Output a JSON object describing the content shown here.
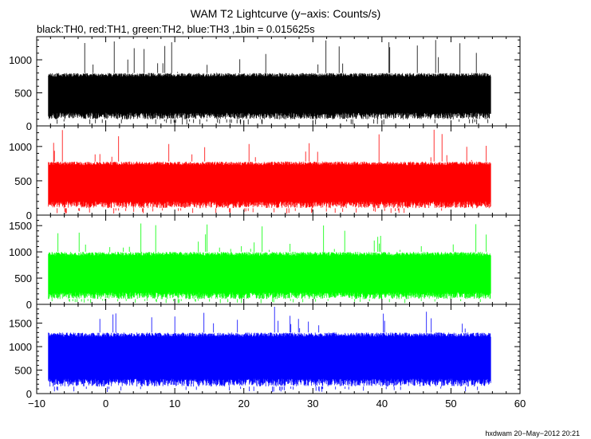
{
  "header": {
    "title": "WAM T2 Lightcurve (y−axis: Counts/s)",
    "subtitle": "black:TH0, red:TH1, green:TH2, blue:TH3 ,1bin = 0.015625s"
  },
  "footer": {
    "stamp": "hxdwam 20−May−2012 20:21"
  },
  "chart_data": {
    "type": "line",
    "title": "WAM T2 Lightcurve (y−axis: Counts/s)",
    "subtitle": "black:TH0, red:TH1, green:TH2, blue:TH3 ,1bin = 0.015625s",
    "xlabel": "",
    "ylabel": "",
    "xlim": [
      -10,
      60
    ],
    "x_ticks": [
      -10,
      0,
      10,
      20,
      30,
      40,
      50,
      60
    ],
    "x_tick_labels": [
      "−10",
      "0",
      "10",
      "20",
      "30",
      "40",
      "50",
      "60"
    ],
    "data_x_range": [
      -8.3,
      55.8
    ],
    "bin_size_s": 0.015625,
    "grid": false,
    "legend": "in subtitle",
    "panels": [
      {
        "name": "TH0",
        "color": "#000000",
        "ylim": [
          0,
          1350
        ],
        "y_ticks": [
          0,
          500,
          1000
        ],
        "y_tick_labels": [
          "0",
          "500",
          "1000"
        ],
        "typical_range": [
          100,
          800
        ],
        "mean": 430,
        "max_spike": 1300
      },
      {
        "name": "TH1",
        "color": "#ff0000",
        "ylim": [
          0,
          1300
        ],
        "y_ticks": [
          0,
          500,
          1000
        ],
        "y_tick_labels": [
          "0",
          "500",
          "1000"
        ],
        "typical_range": [
          100,
          780
        ],
        "mean": 430,
        "max_spike": 1250
      },
      {
        "name": "TH2",
        "color": "#00ff00",
        "ylim": [
          0,
          1700
        ],
        "y_ticks": [
          0,
          500,
          1000,
          1500
        ],
        "y_tick_labels": [
          "0",
          "500",
          "1000",
          "1500"
        ],
        "typical_range": [
          100,
          1000
        ],
        "mean": 520,
        "max_spike": 1550
      },
      {
        "name": "TH3",
        "color": "#0000ff",
        "ylim": [
          0,
          1900
        ],
        "y_ticks": [
          0,
          500,
          1000,
          1500
        ],
        "y_tick_labels": [
          "0",
          "500",
          "1000",
          "1500"
        ],
        "typical_range": [
          150,
          1300
        ],
        "mean": 700,
        "max_spike": 1850
      }
    ]
  }
}
